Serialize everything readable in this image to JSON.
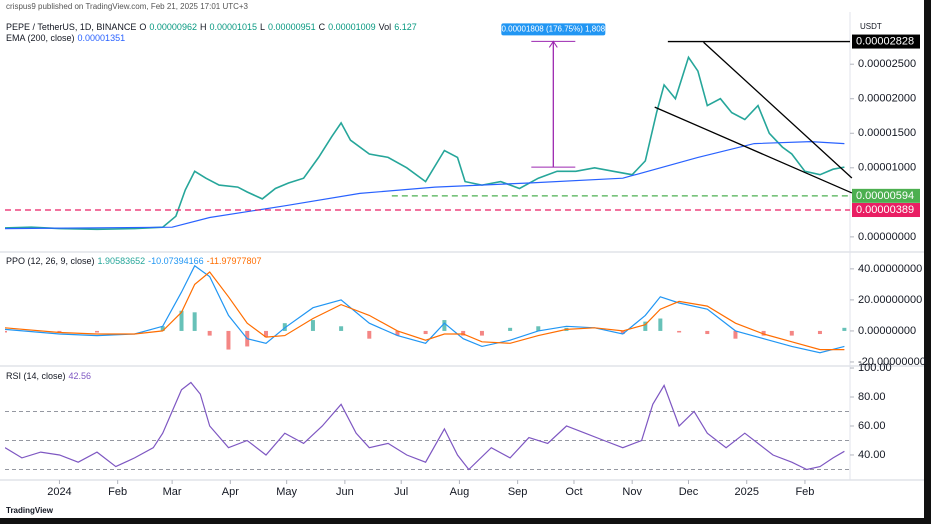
{
  "header": {
    "publisher": "crispus9 published on TradingView.com, Feb 21, 2025 17:01 UTC+3",
    "logo": "TradingView"
  },
  "chart_data": [
    {
      "type": "line",
      "currency": "USDT",
      "ohlc": [
        {
          "label": "O",
          "value": "0.00000962"
        },
        {
          "label": "H",
          "value": "0.00001015"
        },
        {
          "label": "L",
          "value": "0.00000951"
        },
        {
          "label": "C",
          "value": "0.00001009"
        },
        {
          "label": "Vol",
          "value": "6.127"
        }
      ],
      "legend_values": [
        "0.00001351"
      ],
      "xlim": [
        -29,
        421
      ],
      "ylim": [
        -1.9e-06,
        3.14e-05
      ],
      "yticks": [
        {
          "value": 2.5e-05,
          "label": "0.00002500"
        },
        {
          "value": 2e-05,
          "label": "0.00002000"
        },
        {
          "value": 1.5e-05,
          "label": "0.00001500"
        },
        {
          "value": 1e-05,
          "label": "0.00001000"
        },
        {
          "value": 0,
          "label": "0.00000000"
        }
      ],
      "series": [
        {
          "name": "PEPE / TetherUS, 1D, BINANCE",
          "color": "#26a69a",
          "x": [
            -29,
            -15,
            0,
            20,
            40,
            55,
            62,
            67,
            72,
            78,
            85,
            95,
            100,
            108,
            115,
            122,
            130,
            138,
            145,
            150,
            155,
            165,
            175,
            185,
            195,
            205,
            212,
            216,
            225,
            235,
            245,
            255,
            265,
            275,
            285,
            295,
            305,
            312,
            318,
            322,
            328,
            335,
            340,
            345,
            352,
            358,
            365,
            372,
            378,
            385,
            390,
            397,
            405,
            412,
            418
          ],
          "values": [
            1.3e-06,
            1.4e-06,
            1.2e-06,
            1.1e-06,
            1.2e-06,
            1.4e-06,
            3e-06,
            6.8e-06,
            9.5e-06,
            8.5e-06,
            7.5e-06,
            7.2e-06,
            6.5e-06,
            5.5e-06,
            7e-06,
            7.8e-06,
            8.5e-06,
            1.15e-05,
            1.45e-05,
            1.65e-05,
            1.4e-05,
            1.2e-05,
            1.15e-05,
            1e-05,
            8e-06,
            1.25e-05,
            1.15e-05,
            8e-06,
            7.5e-06,
            8e-06,
            7e-06,
            8.5e-06,
            9.5e-06,
            9.5e-06,
            1e-05,
            9.5e-06,
            9e-06,
            1.1e-05,
            1.8e-05,
            2.2e-05,
            2e-05,
            2.6e-05,
            2.4e-05,
            1.9e-05,
            2e-05,
            1.8e-05,
            1.7e-05,
            1.9e-05,
            1.5e-05,
            1.3e-05,
            1.2e-05,
            9.5e-06,
            9e-06,
            9.8e-06,
            1.01e-05
          ]
        },
        {
          "name": "EMA (200, close)",
          "color": "#2962ff",
          "x": [
            -29,
            60,
            80,
            120,
            160,
            200,
            250,
            300,
            340,
            370,
            400,
            418
          ],
          "values": [
            1.2e-06,
            1.4e-06,
            2.8e-06,
            4.5e-06,
            6.3e-06,
            7.2e-06,
            7.8e-06,
            8.5e-06,
            1.15e-05,
            1.35e-05,
            1.38e-05,
            1.35e-05
          ]
        }
      ],
      "levels": [
        {
          "value": 2.828e-05,
          "label": "0.00002828",
          "color": "#000000",
          "x": [
            324,
            421
          ],
          "style": "solid"
        },
        {
          "value": 5.94e-06,
          "label": "0.00000594",
          "color": "#4caf50",
          "x": [
            177,
            421
          ],
          "style": "dashed"
        },
        {
          "value": 3.89e-06,
          "label": "0.00000389",
          "color": "#e91e63",
          "x": [
            -29,
            421
          ],
          "style": "dashed"
        }
      ],
      "trendlines": [
        {
          "x": [
            343,
            422
          ],
          "y": [
            2.818e-05,
            8.53e-06
          ],
          "color": "#000000"
        },
        {
          "x": [
            317,
            422
          ],
          "y": [
            1.879e-05,
            6.36e-06
          ],
          "color": "#000000"
        }
      ],
      "measure": {
        "x": 263,
        "y": [
          1.01e-05,
          2.83e-05
        ],
        "label": "0.00001808 (176.75%) 1,808",
        "color": "#9c27b0"
      }
    },
    {
      "type": "line",
      "name": "PPO (12, 26, 9, close)",
      "legend_values": [
        "1.90583652",
        "-10.07394166",
        "-11.97977807"
      ],
      "xlim": [
        -29,
        421
      ],
      "ylim": [
        -22.6,
        47
      ],
      "yticks": [
        {
          "value": 40,
          "label": "40.00000000"
        },
        {
          "value": 20,
          "label": "20.00000000"
        },
        {
          "value": 0,
          "label": "0.00000000"
        },
        {
          "value": -20,
          "label": "-20.00000000"
        }
      ],
      "series": [
        {
          "name": "Histogram",
          "type": "bar",
          "color": "#26a69a",
          "negative_color": "#ef5350",
          "x": [
            -29,
            0,
            20,
            40,
            55,
            65,
            72,
            80,
            90,
            100,
            110,
            120,
            135,
            150,
            165,
            180,
            195,
            205,
            215,
            225,
            240,
            255,
            270,
            285,
            300,
            312,
            320,
            330,
            345,
            360,
            375,
            390,
            405,
            418
          ],
          "values": [
            -1,
            -1,
            -1,
            0,
            3,
            13,
            12,
            -3,
            -12,
            -10,
            -4,
            5,
            7,
            3,
            -5,
            -3,
            -2,
            7,
            -3,
            -3,
            2,
            3,
            2,
            0,
            -2,
            6,
            8,
            -1,
            -2,
            -5,
            -3,
            -3,
            -2,
            2
          ]
        },
        {
          "name": "PPO",
          "color": "#2196f3",
          "x": [
            -29,
            0,
            20,
            40,
            55,
            65,
            72,
            80,
            90,
            100,
            110,
            120,
            135,
            150,
            165,
            180,
            195,
            205,
            215,
            225,
            240,
            255,
            270,
            285,
            300,
            312,
            320,
            330,
            345,
            360,
            375,
            390,
            405,
            418
          ],
          "values": [
            1,
            -2,
            -3,
            -2,
            3,
            25,
            42,
            35,
            10,
            -5,
            -8,
            2,
            15,
            20,
            5,
            -3,
            -8,
            5,
            -5,
            -10,
            -6,
            0,
            3,
            2,
            -2,
            10,
            22,
            18,
            14,
            0,
            -5,
            -10,
            -14,
            -10
          ]
        },
        {
          "name": "Signal",
          "color": "#ff6d00",
          "x": [
            -29,
            0,
            20,
            40,
            55,
            65,
            72,
            80,
            90,
            100,
            110,
            120,
            135,
            150,
            165,
            180,
            195,
            205,
            215,
            225,
            240,
            255,
            270,
            285,
            300,
            312,
            320,
            330,
            345,
            360,
            375,
            390,
            405,
            418
          ],
          "values": [
            2,
            -1,
            -2,
            -2,
            0,
            12,
            30,
            38,
            22,
            5,
            -4,
            -3,
            8,
            17,
            10,
            0,
            -6,
            -2,
            -2,
            -7,
            -8,
            -3,
            1,
            2,
            0,
            4,
            14,
            19,
            16,
            5,
            -2,
            -7,
            -12,
            -12
          ]
        }
      ]
    },
    {
      "type": "line",
      "name": "RSI (14, close)",
      "legend_values": [
        "42.56"
      ],
      "xlim": [
        -29,
        421
      ],
      "ylim": [
        24.1,
        101.4
      ],
      "yticks": [
        {
          "value": 100,
          "label": "100.00"
        },
        {
          "value": 80,
          "label": "80.00"
        },
        {
          "value": 60,
          "label": "60.00"
        },
        {
          "value": 40,
          "label": "40.00"
        }
      ],
      "bands": [
        70,
        50,
        30
      ],
      "xticks": [
        {
          "value": 0,
          "label": "2024"
        },
        {
          "value": 31,
          "label": "Feb"
        },
        {
          "value": 60,
          "label": "Mar"
        },
        {
          "value": 91,
          "label": "Apr"
        },
        {
          "value": 121,
          "label": "May"
        },
        {
          "value": 152,
          "label": "Jun"
        },
        {
          "value": 182,
          "label": "Jul"
        },
        {
          "value": 213,
          "label": "Aug"
        },
        {
          "value": 244,
          "label": "Sep"
        },
        {
          "value": 274,
          "label": "Oct"
        },
        {
          "value": 305,
          "label": "Nov"
        },
        {
          "value": 335,
          "label": "Dec"
        },
        {
          "value": 366,
          "label": "2025"
        },
        {
          "value": 397,
          "label": "Feb"
        }
      ],
      "series": [
        {
          "name": "RSI",
          "color": "#7e57c2",
          "x": [
            -29,
            -20,
            -10,
            0,
            10,
            20,
            30,
            40,
            50,
            55,
            60,
            65,
            70,
            75,
            80,
            90,
            100,
            110,
            120,
            130,
            140,
            150,
            158,
            165,
            175,
            185,
            195,
            205,
            212,
            218,
            230,
            240,
            250,
            260,
            270,
            280,
            290,
            300,
            310,
            316,
            322,
            330,
            338,
            345,
            355,
            365,
            372,
            380,
            390,
            398,
            405,
            412,
            418
          ],
          "values": [
            45,
            38,
            42,
            40,
            35,
            42,
            32,
            38,
            45,
            55,
            70,
            85,
            90,
            82,
            60,
            45,
            50,
            40,
            55,
            48,
            60,
            75,
            55,
            45,
            48,
            40,
            35,
            58,
            40,
            30,
            45,
            38,
            52,
            48,
            60,
            55,
            50,
            45,
            50,
            75,
            88,
            60,
            70,
            55,
            45,
            55,
            48,
            40,
            35,
            30,
            32,
            38,
            42.56
          ]
        }
      ]
    }
  ]
}
